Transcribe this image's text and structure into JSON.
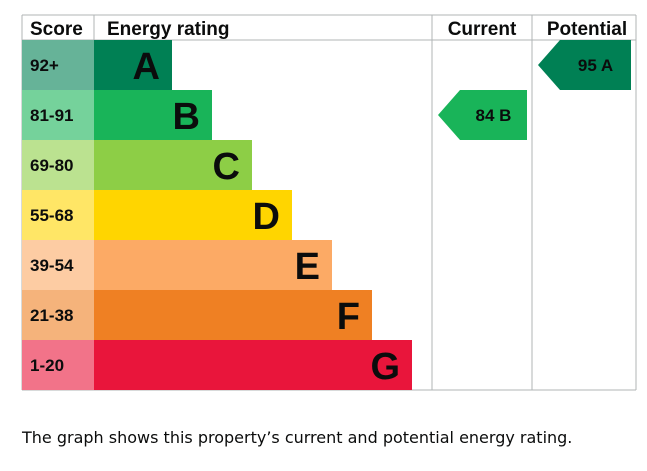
{
  "chart_data": {
    "type": "bar",
    "headers": {
      "score": "Score",
      "rating": "Energy rating",
      "current": "Current",
      "potential": "Potential"
    },
    "bands": [
      {
        "score": "92+",
        "letter": "A",
        "color": "#008054",
        "score_bg": "#66b398"
      },
      {
        "score": "81-91",
        "letter": "B",
        "color": "#19b459",
        "score_bg": "#75d29b"
      },
      {
        "score": "69-80",
        "letter": "C",
        "color": "#8dce46",
        "score_bg": "#bbe290"
      },
      {
        "score": "55-68",
        "letter": "D",
        "color": "#ffd500",
        "score_bg": "#ffe666"
      },
      {
        "score": "39-54",
        "letter": "E",
        "color": "#fcaa65",
        "score_bg": "#fdcca3"
      },
      {
        "score": "21-38",
        "letter": "F",
        "color": "#ef8023",
        "score_bg": "#f5b37b"
      },
      {
        "score": "1-20",
        "letter": "G",
        "color": "#e9153b",
        "score_bg": "#f27389"
      }
    ],
    "current": {
      "value": 84,
      "band": "B",
      "label": "84  B"
    },
    "potential": {
      "value": 95,
      "band": "A",
      "label": "95  A"
    },
    "caption": "The graph shows this property’s current and potential energy rating."
  }
}
